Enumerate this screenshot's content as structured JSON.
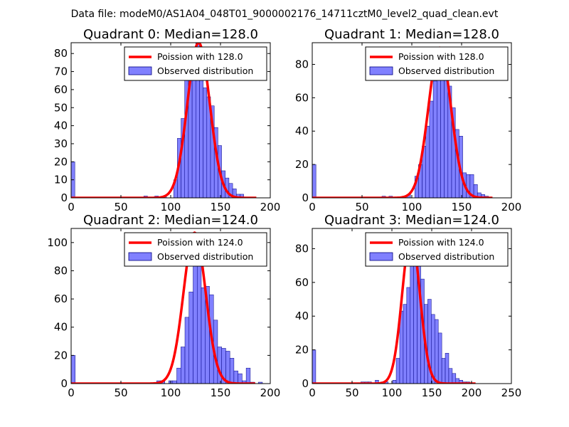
{
  "figure": {
    "suptitle": "Data file: modeM0/AS1A04_048T01_9000002176_14711cztM0_level2_quad_clean.evt"
  },
  "colors": {
    "bar_fill": "#8080ff",
    "bar_edge": "#000080",
    "curve": "#ff0000",
    "axis": "#000000",
    "background": "#ffffff"
  },
  "chart_data": [
    {
      "type": "bar",
      "title": "Quadrant 0: Median=128.0",
      "xlim": [
        0,
        200
      ],
      "ylim": [
        0,
        86
      ],
      "xticks": [
        0,
        50,
        100,
        150,
        200
      ],
      "yticks": [
        0,
        10,
        20,
        30,
        40,
        50,
        60,
        70,
        80
      ],
      "bin_width": 3.7,
      "legend": {
        "placement": "top-right",
        "line_label": "Poission with 128.0",
        "bar_label": "Observed distribution"
      },
      "bins": [
        [
          0,
          20
        ],
        [
          73,
          1
        ],
        [
          84,
          1
        ],
        [
          92,
          1
        ],
        [
          103,
          10
        ],
        [
          106.7,
          33
        ],
        [
          110.4,
          44
        ],
        [
          114.1,
          72
        ],
        [
          117.8,
          82
        ],
        [
          121.5,
          77
        ],
        [
          125.2,
          86
        ],
        [
          128.9,
          73
        ],
        [
          132.6,
          61
        ],
        [
          136.3,
          56
        ],
        [
          140,
          51
        ],
        [
          143.7,
          39
        ],
        [
          147.4,
          29
        ],
        [
          151.1,
          15
        ],
        [
          154.8,
          11
        ],
        [
          158.5,
          8
        ],
        [
          162.2,
          5
        ],
        [
          165.9,
          2
        ],
        [
          169.6,
          2
        ]
      ],
      "curve": {
        "peak": 86,
        "mu": 128,
        "sigma": 11.3,
        "x_range": [
          0,
          186
        ]
      }
    },
    {
      "type": "bar",
      "title": "Quadrant 1: Median=128.0",
      "xlim": [
        0,
        200
      ],
      "ylim": [
        0,
        93
      ],
      "xticks": [
        0,
        50,
        100,
        150,
        200
      ],
      "yticks": [
        0,
        20,
        40,
        60,
        80
      ],
      "bin_width": 3.7,
      "legend": {
        "placement": "top-right",
        "line_label": "Poission with 128.0",
        "bar_label": "Observed distribution"
      },
      "bins": [
        [
          0,
          20
        ],
        [
          70,
          1
        ],
        [
          77,
          1
        ],
        [
          95,
          2
        ],
        [
          103,
          13
        ],
        [
          106.7,
          20
        ],
        [
          110.4,
          31
        ],
        [
          114.1,
          43
        ],
        [
          117.8,
          58
        ],
        [
          121.5,
          70
        ],
        [
          125.2,
          76
        ],
        [
          128.9,
          86
        ],
        [
          132.6,
          75
        ],
        [
          136.3,
          67
        ],
        [
          140,
          54
        ],
        [
          143.7,
          41
        ],
        [
          147.4,
          37
        ],
        [
          151.1,
          15
        ],
        [
          154.8,
          14
        ],
        [
          158.5,
          14
        ],
        [
          162.2,
          8
        ],
        [
          165.9,
          3
        ],
        [
          169.6,
          2
        ],
        [
          173.3,
          1
        ]
      ],
      "curve": {
        "peak": 90,
        "mu": 128,
        "sigma": 11.3,
        "x_range": [
          0,
          181
        ]
      }
    },
    {
      "type": "bar",
      "title": "Quadrant 2: Median=124.0",
      "xlim": [
        0,
        200
      ],
      "ylim": [
        0,
        110
      ],
      "xticks": [
        0,
        50,
        100,
        150,
        200
      ],
      "yticks": [
        0,
        20,
        40,
        60,
        80,
        100
      ],
      "bin_width": 4.1,
      "legend": {
        "placement": "top-right",
        "line_label": "Poission with 124.0",
        "bar_label": "Observed distribution"
      },
      "bins": [
        [
          0,
          20
        ],
        [
          86,
          2
        ],
        [
          90,
          2
        ],
        [
          98,
          2
        ],
        [
          102,
          2
        ],
        [
          106.1,
          11
        ],
        [
          110.2,
          26
        ],
        [
          114.3,
          47
        ],
        [
          118.4,
          65
        ],
        [
          122.5,
          97
        ],
        [
          126.6,
          105
        ],
        [
          130.7,
          68
        ],
        [
          134.8,
          69
        ],
        [
          138.9,
          63
        ],
        [
          143,
          45
        ],
        [
          147.1,
          26
        ],
        [
          151.2,
          25
        ],
        [
          155.3,
          23
        ],
        [
          159.4,
          18
        ],
        [
          163.5,
          9
        ],
        [
          167.6,
          7
        ],
        [
          171.7,
          2
        ],
        [
          175.8,
          11
        ],
        [
          180,
          1
        ],
        [
          188,
          1
        ]
      ],
      "curve": {
        "peak": 107,
        "mu": 124,
        "sigma": 11.1,
        "x_range": [
          0,
          185
        ]
      }
    },
    {
      "type": "bar",
      "title": "Quadrant 3: Median=124.0",
      "xlim": [
        0,
        250
      ],
      "ylim": [
        0,
        92
      ],
      "xticks": [
        0,
        50,
        100,
        150,
        200,
        250
      ],
      "yticks": [
        0,
        20,
        40,
        60,
        80
      ],
      "bin_width": 4.4,
      "legend": {
        "placement": "top-right",
        "line_label": "Poission with 124.0",
        "bar_label": "Observed distribution"
      },
      "bins": [
        [
          0,
          20
        ],
        [
          61,
          1
        ],
        [
          66,
          1
        ],
        [
          70,
          1
        ],
        [
          79,
          2
        ],
        [
          86,
          1
        ],
        [
          91,
          1
        ],
        [
          101,
          2
        ],
        [
          105.4,
          15
        ],
        [
          109.8,
          43
        ],
        [
          114.2,
          47
        ],
        [
          118.6,
          57
        ],
        [
          123,
          87
        ],
        [
          127.4,
          75
        ],
        [
          131.8,
          79
        ],
        [
          136.2,
          62
        ],
        [
          140.6,
          47
        ],
        [
          145,
          50
        ],
        [
          149.4,
          41
        ],
        [
          153.8,
          38
        ],
        [
          158.2,
          30
        ],
        [
          162.6,
          15
        ],
        [
          167,
          18
        ],
        [
          171.4,
          9
        ],
        [
          175.8,
          6
        ],
        [
          180.2,
          3
        ],
        [
          184.6,
          2
        ],
        [
          189,
          1
        ],
        [
          193.4,
          1
        ]
      ],
      "curve": {
        "peak": 88,
        "mu": 124,
        "sigma": 11.1,
        "x_range": [
          0,
          205
        ]
      }
    }
  ]
}
